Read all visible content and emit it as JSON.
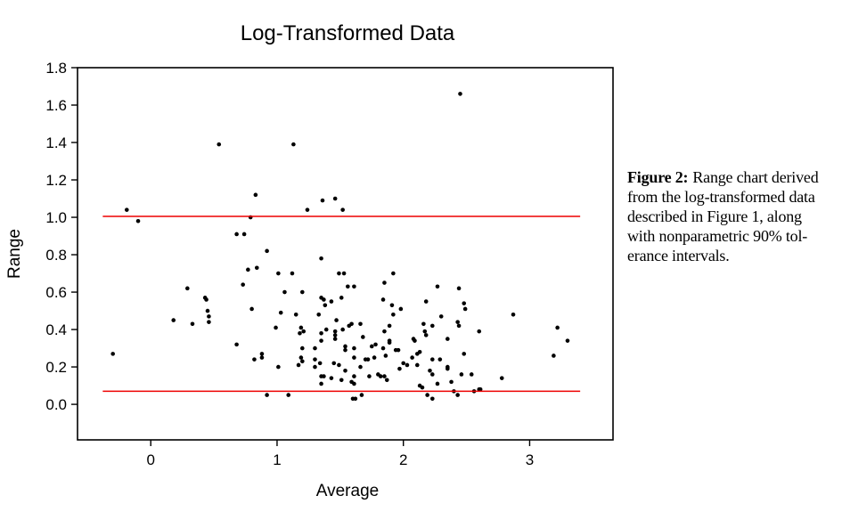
{
  "chart_data": {
    "type": "scatter",
    "title": "Log-Transformed Data",
    "xlabel": "Average",
    "ylabel": "Range",
    "x_ticks": [
      "0",
      "1",
      "2",
      "3"
    ],
    "y_ticks": [
      "0.0",
      "0.2",
      "0.4",
      "0.6",
      "0.8",
      "1.0",
      "1.2",
      "1.4",
      "1.6",
      "1.8"
    ],
    "xlim": [
      -0.58,
      3.66
    ],
    "ylim": [
      -0.19,
      1.8
    ],
    "grid": false,
    "legend": "none",
    "marker_color": "#000000",
    "tolerance_lines": {
      "upper": 1.005,
      "lower": 0.07,
      "x_range": [
        -0.38,
        3.4
      ],
      "color": "#ee0000"
    },
    "points": [
      [
        0.54,
        1.39
      ],
      [
        1.13,
        1.39
      ],
      [
        2.45,
        1.66
      ],
      [
        -0.19,
        1.04
      ],
      [
        -0.1,
        0.98
      ],
      [
        0.83,
        1.12
      ],
      [
        0.79,
        1.0
      ],
      [
        0.68,
        0.91
      ],
      [
        0.74,
        0.91
      ],
      [
        1.24,
        1.04
      ],
      [
        1.36,
        1.09
      ],
      [
        1.46,
        1.1
      ],
      [
        1.52,
        1.04
      ],
      [
        0.92,
        0.82
      ],
      [
        1.35,
        0.78
      ],
      [
        0.77,
        0.72
      ],
      [
        0.84,
        0.73
      ],
      [
        1.01,
        0.7
      ],
      [
        1.12,
        0.7
      ],
      [
        1.49,
        0.7
      ],
      [
        1.53,
        0.7
      ],
      [
        1.92,
        0.7
      ],
      [
        1.85,
        0.65
      ],
      [
        0.73,
        0.64
      ],
      [
        1.56,
        0.63
      ],
      [
        0.29,
        0.62
      ],
      [
        1.06,
        0.6
      ],
      [
        1.2,
        0.6
      ],
      [
        1.61,
        0.63
      ],
      [
        2.27,
        0.63
      ],
      [
        2.44,
        0.62
      ],
      [
        0.43,
        0.57
      ],
      [
        0.44,
        0.56
      ],
      [
        1.35,
        0.57
      ],
      [
        1.37,
        0.56
      ],
      [
        1.51,
        0.57
      ],
      [
        1.43,
        0.55
      ],
      [
        1.84,
        0.56
      ],
      [
        2.18,
        0.55
      ],
      [
        1.38,
        0.53
      ],
      [
        1.91,
        0.53
      ],
      [
        2.48,
        0.54
      ],
      [
        0.8,
        0.51
      ],
      [
        0.45,
        0.5
      ],
      [
        1.03,
        0.49
      ],
      [
        1.15,
        0.48
      ],
      [
        1.33,
        0.48
      ],
      [
        1.98,
        0.51
      ],
      [
        2.49,
        0.51
      ],
      [
        2.3,
        0.47
      ],
      [
        2.87,
        0.48
      ],
      [
        1.92,
        0.48
      ],
      [
        0.18,
        0.45
      ],
      [
        0.46,
        0.47
      ],
      [
        0.46,
        0.44
      ],
      [
        0.33,
        0.43
      ],
      [
        1.47,
        0.45
      ],
      [
        2.43,
        0.44
      ],
      [
        2.44,
        0.42
      ],
      [
        1.59,
        0.43
      ],
      [
        1.66,
        0.43
      ],
      [
        2.16,
        0.43
      ],
      [
        2.23,
        0.42
      ],
      [
        1.57,
        0.42
      ],
      [
        3.22,
        0.41
      ],
      [
        0.99,
        0.41
      ],
      [
        1.19,
        0.41
      ],
      [
        1.21,
        0.39
      ],
      [
        1.18,
        0.38
      ],
      [
        1.35,
        0.38
      ],
      [
        1.39,
        0.4
      ],
      [
        1.46,
        0.39
      ],
      [
        1.46,
        0.37
      ],
      [
        1.46,
        0.35
      ],
      [
        1.52,
        0.4
      ],
      [
        1.89,
        0.42
      ],
      [
        1.85,
        0.39
      ],
      [
        2.17,
        0.39
      ],
      [
        2.18,
        0.37
      ],
      [
        2.6,
        0.39
      ],
      [
        1.68,
        0.36
      ],
      [
        2.08,
        0.35
      ],
      [
        2.09,
        0.34
      ],
      [
        1.89,
        0.34
      ],
      [
        1.89,
        0.33
      ],
      [
        2.35,
        0.35
      ],
      [
        1.35,
        0.34
      ],
      [
        3.3,
        0.34
      ],
      [
        0.68,
        0.32
      ],
      [
        -0.3,
        0.27
      ],
      [
        1.2,
        0.3
      ],
      [
        1.3,
        0.3
      ],
      [
        1.54,
        0.31
      ],
      [
        1.54,
        0.29
      ],
      [
        0.88,
        0.27
      ],
      [
        0.88,
        0.25
      ],
      [
        0.82,
        0.24
      ],
      [
        1.61,
        0.3
      ],
      [
        1.75,
        0.31
      ],
      [
        1.78,
        0.32
      ],
      [
        1.84,
        0.3
      ],
      [
        1.94,
        0.29
      ],
      [
        1.96,
        0.29
      ],
      [
        2.13,
        0.28
      ],
      [
        2.11,
        0.27
      ],
      [
        2.07,
        0.25
      ],
      [
        2.48,
        0.27
      ],
      [
        3.19,
        0.26
      ],
      [
        1.19,
        0.25
      ],
      [
        1.2,
        0.23
      ],
      [
        1.3,
        0.24
      ],
      [
        1.61,
        0.25
      ],
      [
        1.7,
        0.24
      ],
      [
        1.72,
        0.24
      ],
      [
        1.77,
        0.25
      ],
      [
        1.86,
        0.26
      ],
      [
        2.23,
        0.24
      ],
      [
        2.29,
        0.24
      ],
      [
        1.01,
        0.2
      ],
      [
        1.17,
        0.21
      ],
      [
        1.34,
        0.22
      ],
      [
        1.3,
        0.2
      ],
      [
        1.45,
        0.22
      ],
      [
        1.49,
        0.21
      ],
      [
        2.0,
        0.22
      ],
      [
        2.03,
        0.21
      ],
      [
        2.11,
        0.21
      ],
      [
        2.21,
        0.18
      ],
      [
        2.23,
        0.16
      ],
      [
        1.54,
        0.18
      ],
      [
        1.97,
        0.19
      ],
      [
        1.66,
        0.2
      ],
      [
        2.35,
        0.2
      ],
      [
        2.35,
        0.19
      ],
      [
        1.37,
        0.15
      ],
      [
        1.43,
        0.14
      ],
      [
        1.73,
        0.15
      ],
      [
        1.8,
        0.16
      ],
      [
        1.82,
        0.15
      ],
      [
        1.85,
        0.15
      ],
      [
        1.61,
        0.15
      ],
      [
        2.46,
        0.16
      ],
      [
        2.54,
        0.16
      ],
      [
        2.78,
        0.14
      ],
      [
        1.35,
        0.15
      ],
      [
        1.51,
        0.13
      ],
      [
        1.35,
        0.11
      ],
      [
        1.59,
        0.12
      ],
      [
        1.61,
        0.11
      ],
      [
        1.87,
        0.13
      ],
      [
        2.13,
        0.1
      ],
      [
        2.15,
        0.09
      ],
      [
        2.27,
        0.11
      ],
      [
        2.38,
        0.12
      ],
      [
        0.92,
        0.05
      ],
      [
        1.09,
        0.05
      ],
      [
        2.19,
        0.05
      ],
      [
        2.23,
        0.03
      ],
      [
        2.4,
        0.07
      ],
      [
        2.43,
        0.05
      ],
      [
        2.56,
        0.07
      ],
      [
        2.6,
        0.08
      ],
      [
        2.61,
        0.08
      ],
      [
        1.6,
        0.03
      ],
      [
        1.62,
        0.03
      ],
      [
        1.67,
        0.05
      ]
    ]
  },
  "caption": {
    "label": "Figure 2:",
    "line1": "Range chart derived",
    "line2": "from the log-transformed data",
    "line3": "described in Figure 1, along",
    "line4": "with nonparametric 90% tol-",
    "line5": "erance intervals."
  }
}
